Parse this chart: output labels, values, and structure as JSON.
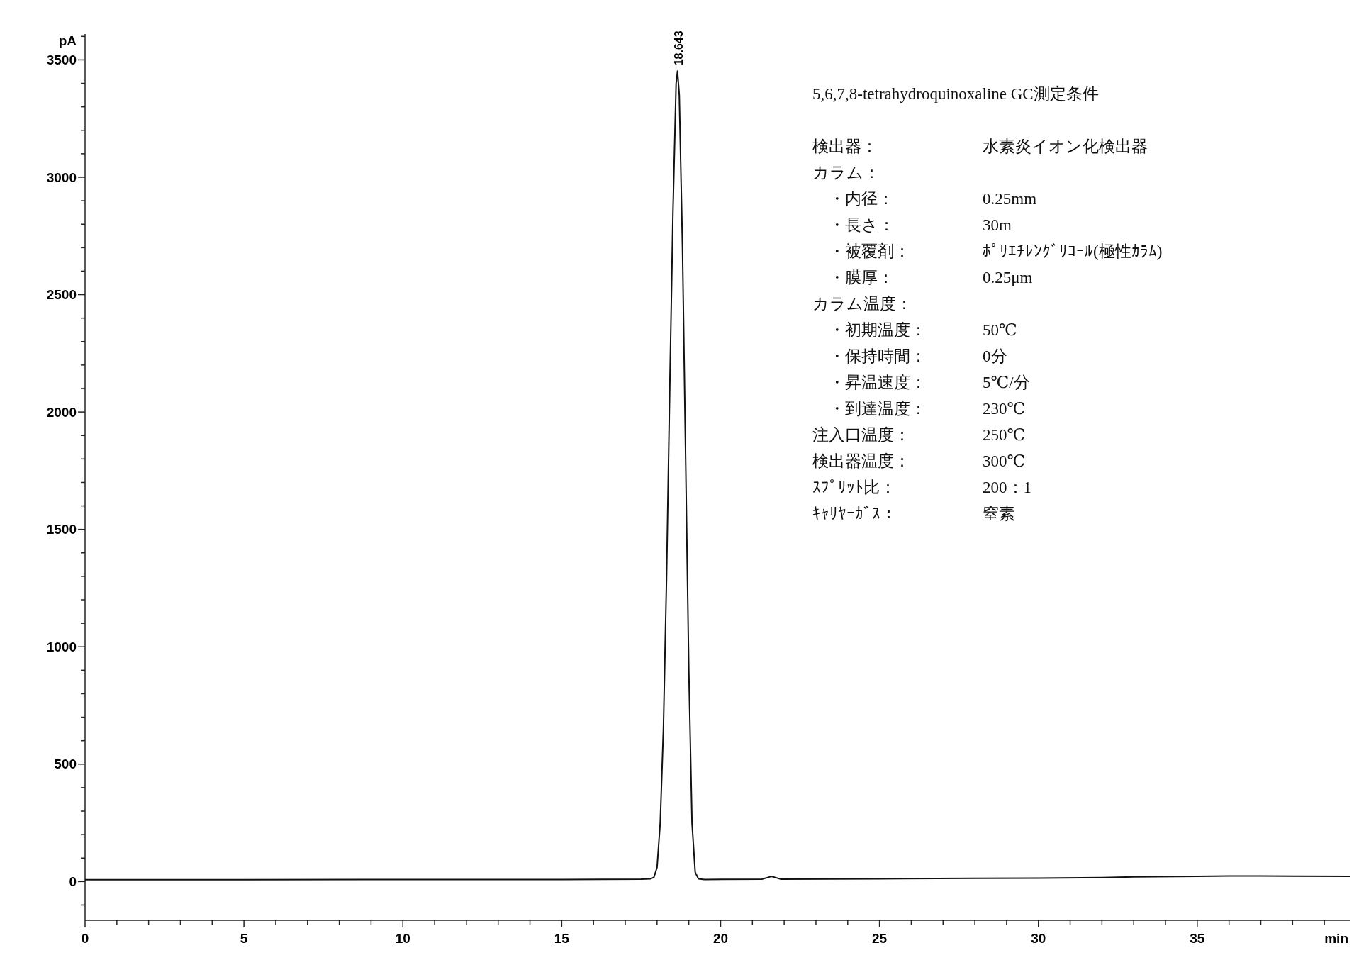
{
  "chart_data": {
    "type": "line",
    "xlabel": "min",
    "ylabel": "pA",
    "xlim": [
      0,
      39.8
    ],
    "ylim": [
      -165,
      3610
    ],
    "xticks": [
      0,
      {
        "value": 1,
        "label": null
      },
      {
        "value": 2,
        "label": null
      },
      {
        "value": 3,
        "label": null
      },
      {
        "value": 4,
        "label": null
      },
      5,
      {
        "value": 6,
        "label": null
      },
      {
        "value": 7,
        "label": null
      },
      {
        "value": 8,
        "label": null
      },
      {
        "value": 9,
        "label": null
      },
      10,
      {
        "value": 11,
        "label": null
      },
      {
        "value": 12,
        "label": null
      },
      {
        "value": 13,
        "label": null
      },
      {
        "value": 14,
        "label": null
      },
      15,
      {
        "value": 16,
        "label": null
      },
      {
        "value": 17,
        "label": null
      },
      {
        "value": 18,
        "label": null
      },
      {
        "value": 19,
        "label": null
      },
      20,
      {
        "value": 21,
        "label": null
      },
      {
        "value": 22,
        "label": null
      },
      {
        "value": 23,
        "label": null
      },
      {
        "value": 24,
        "label": null
      },
      25,
      {
        "value": 26,
        "label": null
      },
      {
        "value": 27,
        "label": null
      },
      {
        "value": 28,
        "label": null
      },
      {
        "value": 29,
        "label": null
      },
      30,
      {
        "value": 31,
        "label": null
      },
      {
        "value": 32,
        "label": null
      },
      {
        "value": 33,
        "label": null
      },
      {
        "value": 34,
        "label": null
      },
      35,
      {
        "value": 36,
        "label": null
      },
      {
        "value": 37,
        "label": null
      },
      {
        "value": 38,
        "label": null
      },
      {
        "value": 39,
        "label": null
      }
    ],
    "yticks": [
      {
        "value": -100,
        "label": null
      },
      0,
      {
        "value": 100,
        "label": null
      },
      {
        "value": 200,
        "label": null
      },
      {
        "value": 300,
        "label": null
      },
      {
        "value": 400,
        "label": null
      },
      500,
      {
        "value": 600,
        "label": null
      },
      {
        "value": 700,
        "label": null
      },
      {
        "value": 800,
        "label": null
      },
      {
        "value": 900,
        "label": null
      },
      1000,
      {
        "value": 1100,
        "label": null
      },
      {
        "value": 1200,
        "label": null
      },
      {
        "value": 1300,
        "label": null
      },
      {
        "value": 1400,
        "label": null
      },
      1500,
      {
        "value": 1600,
        "label": null
      },
      {
        "value": 1700,
        "label": null
      },
      {
        "value": 1800,
        "label": null
      },
      {
        "value": 1900,
        "label": null
      },
      2000,
      {
        "value": 2100,
        "label": null
      },
      {
        "value": 2200,
        "label": null
      },
      {
        "value": 2300,
        "label": null
      },
      {
        "value": 2400,
        "label": null
      },
      2500,
      {
        "value": 2600,
        "label": null
      },
      {
        "value": 2700,
        "label": null
      },
      {
        "value": 2800,
        "label": null
      },
      {
        "value": 2900,
        "label": null
      },
      3000,
      {
        "value": 3100,
        "label": null
      },
      {
        "value": 3200,
        "label": null
      },
      {
        "value": 3300,
        "label": null
      },
      {
        "value": 3400,
        "label": null
      },
      3500,
      {
        "value": 3600,
        "label": null
      }
    ],
    "grid": false,
    "marker": "none",
    "line_style": "solid",
    "series": [
      {
        "color": "#111111",
        "x": [
          0,
          5,
          10,
          15,
          17.5,
          17.8,
          17.9,
          18.0,
          18.1,
          18.2,
          18.3,
          18.4,
          18.5,
          18.6,
          18.643,
          18.7,
          18.8,
          18.9,
          19.0,
          19.1,
          19.2,
          19.3,
          19.5,
          21.3,
          21.5,
          21.6,
          21.7,
          21.9,
          25,
          28,
          30,
          32,
          33,
          35,
          36,
          38,
          39.8
        ],
        "values": [
          8,
          8,
          9,
          9,
          10,
          12,
          18,
          60,
          250,
          650,
          1300,
          2100,
          2850,
          3400,
          3452,
          3350,
          2700,
          1800,
          900,
          250,
          40,
          12,
          9,
          10,
          18,
          22,
          18,
          10,
          12,
          14,
          15,
          17,
          20,
          22,
          24,
          23,
          22
        ]
      }
    ],
    "annotations": [
      {
        "text": "18.643",
        "x": 18.643,
        "y": 3452
      },
      "5,6,7,8-tetrahydroquinoxaline GC測定条件",
      "検出器：\t水素炎イオン化検出器",
      "カラム：",
      "　・内径：\t0.25mm",
      "　・長さ：\t30m",
      "　・被覆剤：\tﾎﾟﾘｴﾁﾚﾝｸﾞﾘｺｰﾙ(極性ｶﾗﾑ)",
      "　・膜厚：\t0.25μm",
      "カラム温度：",
      "　・初期温度：\t50℃",
      "　・保持時間：\t0分",
      "　・昇温速度：\t5℃/分",
      "　・到達温度：\t230℃",
      "注入口温度：\t250℃",
      "検出器温度：\t300℃",
      "ｽﾌﾟﾘｯﾄ比：\t200：1",
      "ｷｬﾘﾔｰｶﾞｽ：\t窒素"
    ]
  }
}
